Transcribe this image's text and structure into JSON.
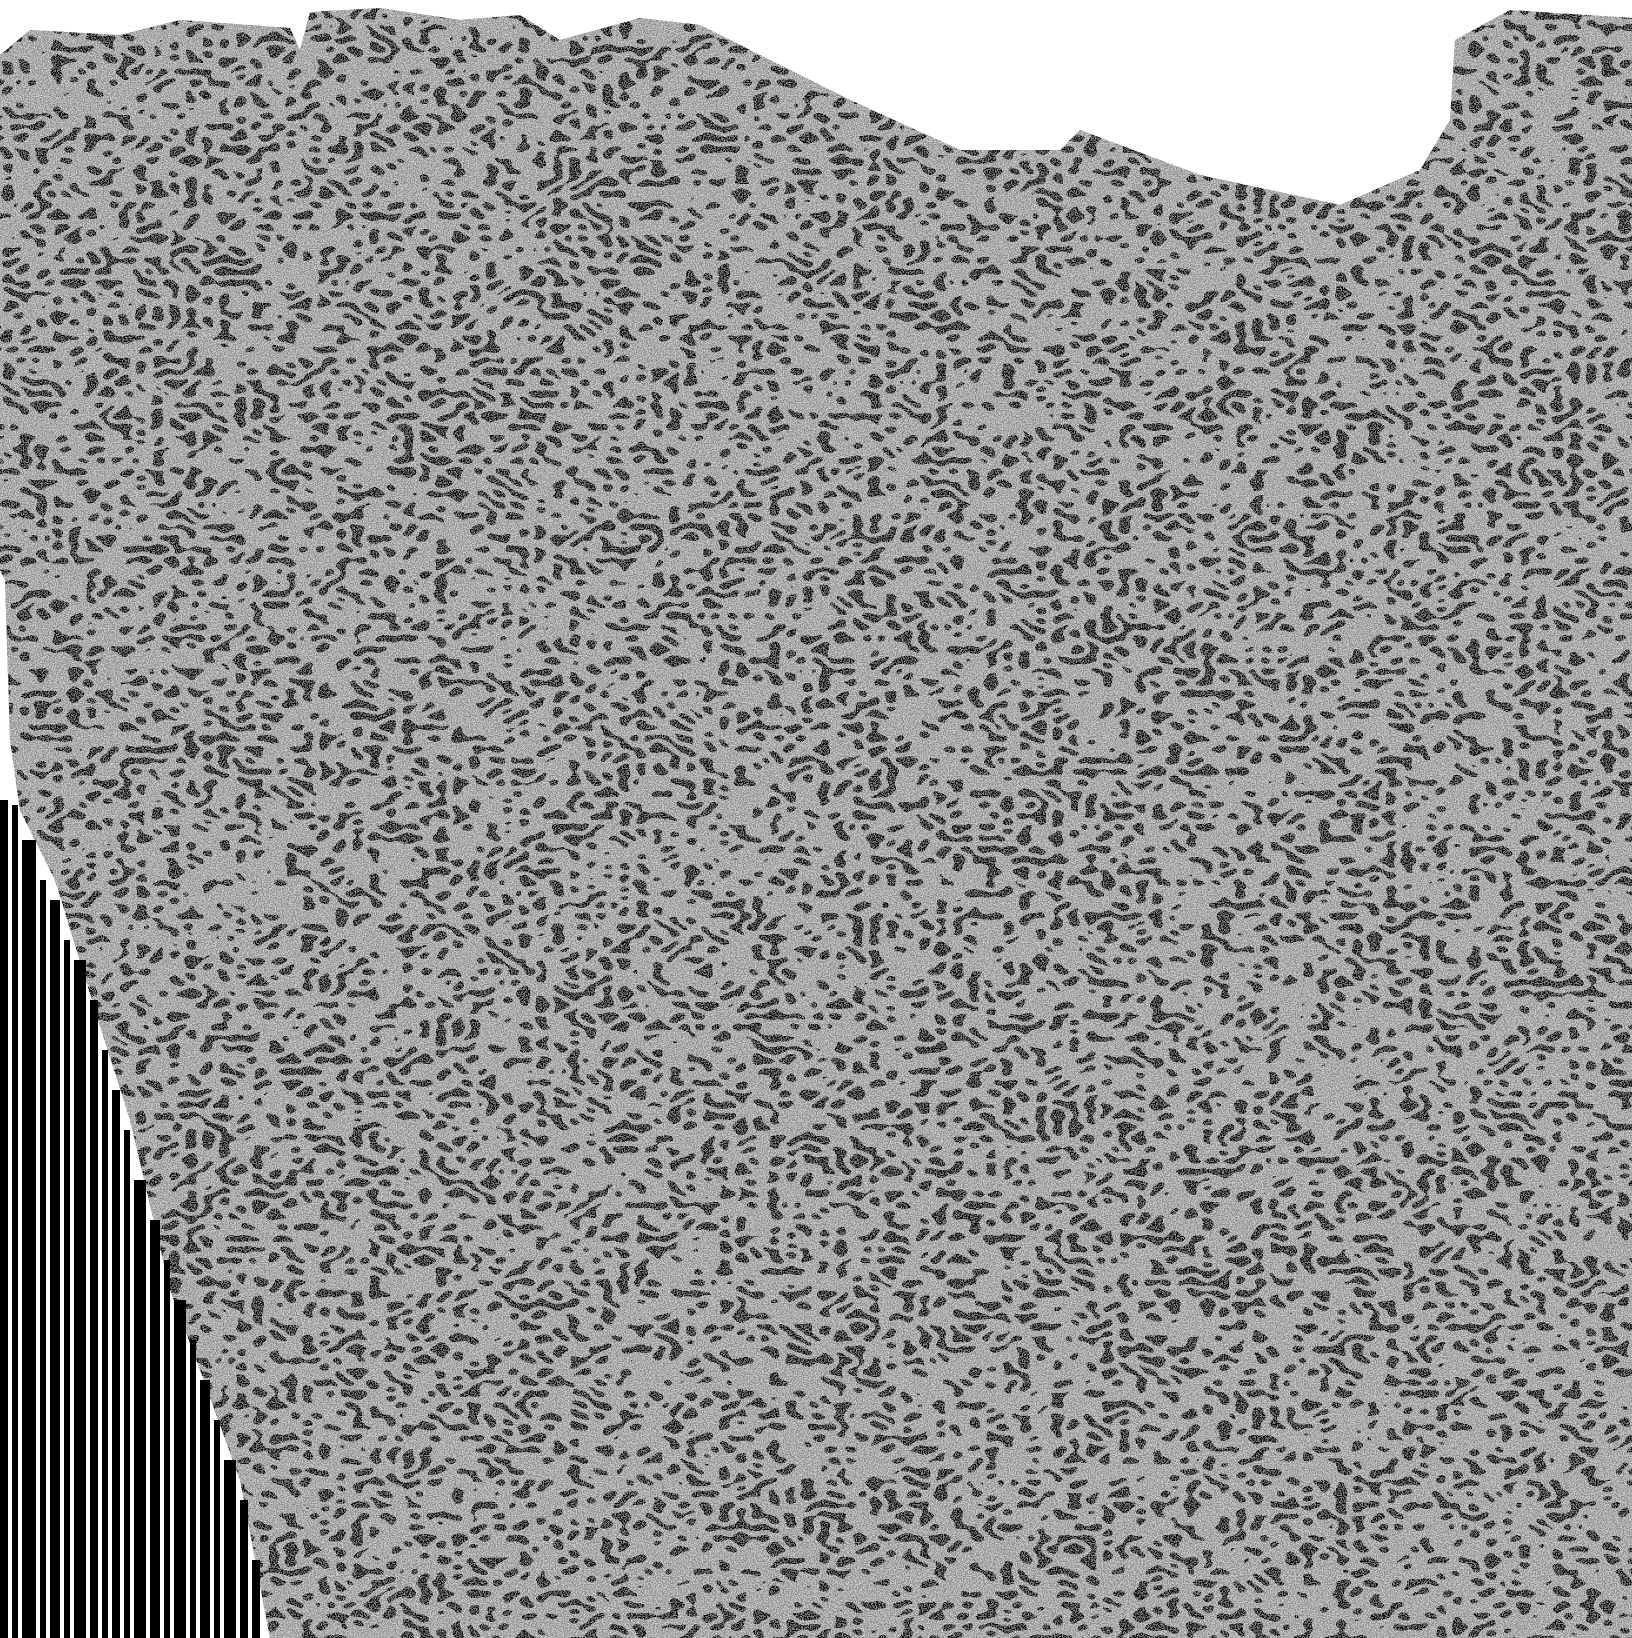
{
  "image": {
    "description_visible_text": "",
    "colors": {
      "background": "#ffffff",
      "noise_dark": "#000000",
      "noise_light": "#ffffff",
      "noise_mid": "#7a7a7a",
      "stripe_dark": "#000000",
      "stripe_light": "#ffffff"
    },
    "icons": []
  }
}
